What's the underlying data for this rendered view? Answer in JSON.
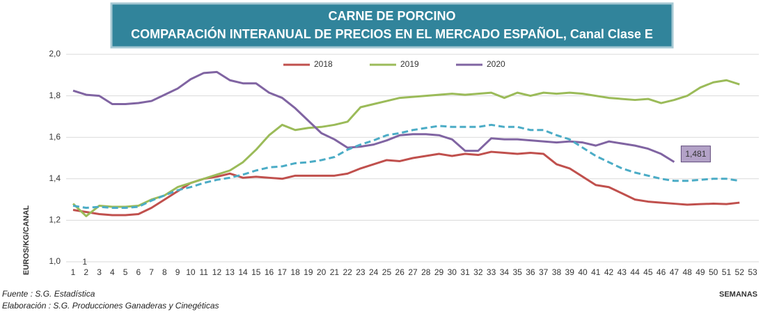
{
  "chart_data": {
    "type": "line",
    "title": "CARNE DE PORCINO",
    "subtitle": "COMPARACIÓN INTERANUAL DE PRECIOS EN EL MERCADO ESPAÑOL, Canal Clase E",
    "y_label": "EUROS/KG/CANAL",
    "x_label": "SEMANAS",
    "annotation": "1",
    "source": "Fuente :  S.G. Estadística",
    "credit": "Elaboración : S.G. Producciones Ganaderas y Cinegéticas",
    "categories": [
      1,
      2,
      3,
      4,
      5,
      6,
      7,
      8,
      9,
      10,
      11,
      12,
      13,
      14,
      15,
      16,
      17,
      18,
      19,
      20,
      21,
      22,
      23,
      24,
      25,
      26,
      27,
      28,
      29,
      30,
      31,
      32,
      33,
      34,
      35,
      36,
      37,
      38,
      39,
      40,
      41,
      42,
      43,
      44,
      45,
      46,
      47,
      48,
      49,
      50,
      51,
      52,
      53
    ],
    "ylim": [
      1.0,
      2.0
    ],
    "yticks": [
      {
        "value": 1.0,
        "label": "1,0"
      },
      {
        "value": 1.2,
        "label": "1,2"
      },
      {
        "value": 1.4,
        "label": "1,4"
      },
      {
        "value": 1.6,
        "label": "1,6"
      },
      {
        "value": 1.8,
        "label": "1,8"
      },
      {
        "value": 2.0,
        "label": "2,0"
      }
    ],
    "grid": true,
    "legend": "top",
    "series": [
      {
        "name": "2018",
        "color": "#c0504d",
        "values": [
          1.25,
          1.24,
          1.23,
          1.225,
          1.225,
          1.23,
          1.26,
          1.3,
          1.34,
          1.38,
          1.4,
          1.41,
          1.425,
          1.405,
          1.41,
          1.405,
          1.4,
          1.415,
          1.415,
          1.415,
          1.415,
          1.425,
          1.45,
          1.47,
          1.49,
          1.485,
          1.5,
          1.51,
          1.52,
          1.51,
          1.52,
          1.515,
          1.53,
          1.525,
          1.52,
          1.525,
          1.52,
          1.47,
          1.45,
          1.41,
          1.37,
          1.36,
          1.33,
          1.3,
          1.29,
          1.285,
          1.28,
          1.275,
          1.278,
          1.28,
          1.278,
          1.285,
          null
        ]
      },
      {
        "name": "2019",
        "color": "#9bbb59",
        "values": [
          1.28,
          1.22,
          1.27,
          1.265,
          1.265,
          1.27,
          1.3,
          1.32,
          1.36,
          1.38,
          1.4,
          1.42,
          1.44,
          1.48,
          1.54,
          1.61,
          1.66,
          1.635,
          1.645,
          1.65,
          1.66,
          1.675,
          1.745,
          1.76,
          1.775,
          1.79,
          1.795,
          1.8,
          1.805,
          1.81,
          1.805,
          1.81,
          1.815,
          1.79,
          1.815,
          1.8,
          1.815,
          1.81,
          1.815,
          1.81,
          1.8,
          1.79,
          1.785,
          1.78,
          1.785,
          1.765,
          1.78,
          1.8,
          1.84,
          1.865,
          1.875,
          1.855,
          null
        ]
      },
      {
        "name": "2020",
        "color": "#8064a2",
        "values": [
          1.825,
          1.805,
          1.8,
          1.76,
          1.76,
          1.765,
          1.775,
          1.805,
          1.835,
          1.88,
          1.91,
          1.915,
          1.875,
          1.86,
          1.86,
          1.815,
          1.79,
          1.74,
          1.68,
          1.62,
          1.59,
          1.55,
          1.555,
          1.565,
          1.585,
          1.61,
          1.615,
          1.615,
          1.61,
          1.59,
          1.535,
          1.535,
          1.595,
          1.59,
          1.59,
          1.585,
          1.58,
          1.575,
          1.58,
          1.575,
          1.56,
          1.58,
          1.57,
          1.56,
          1.545,
          1.52,
          1.481,
          null,
          null,
          null,
          null,
          null,
          null
        ],
        "value_labels": [
          null,
          null,
          null,
          null,
          null,
          null,
          null,
          null,
          null,
          null,
          null,
          null,
          null,
          null,
          null,
          null,
          null,
          null,
          null,
          null,
          null,
          null,
          null,
          null,
          null,
          null,
          null,
          null,
          null,
          null,
          null,
          null,
          null,
          null,
          null,
          null,
          null,
          null,
          null,
          null,
          null,
          null,
          null,
          null,
          null,
          null,
          "1,481",
          null,
          null,
          null,
          null,
          null,
          null
        ]
      },
      {
        "color": "#4bacc6",
        "dashed": true,
        "values": [
          1.27,
          1.26,
          1.265,
          1.26,
          1.26,
          1.265,
          1.295,
          1.32,
          1.345,
          1.36,
          1.38,
          1.395,
          1.405,
          1.42,
          1.44,
          1.455,
          1.46,
          1.475,
          1.48,
          1.49,
          1.505,
          1.54,
          1.565,
          1.585,
          1.61,
          1.62,
          1.635,
          1.645,
          1.655,
          1.65,
          1.65,
          1.65,
          1.66,
          1.65,
          1.65,
          1.635,
          1.635,
          1.61,
          1.59,
          1.55,
          1.51,
          1.48,
          1.45,
          1.43,
          1.415,
          1.4,
          1.39,
          1.39,
          1.395,
          1.4,
          1.4,
          1.39,
          null
        ]
      }
    ]
  }
}
